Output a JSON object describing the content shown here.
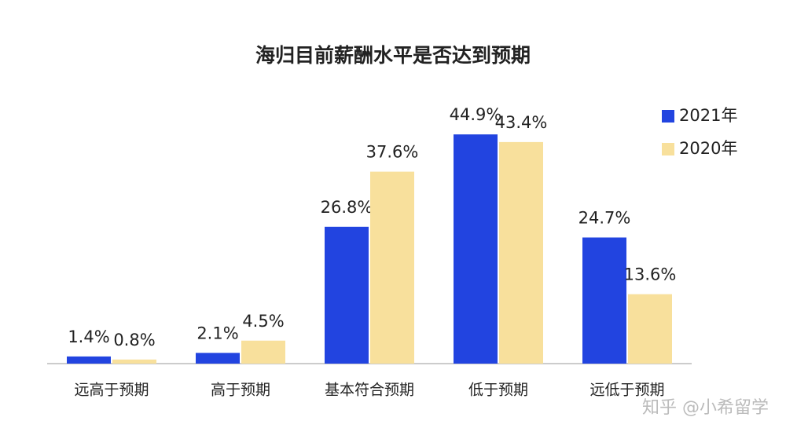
{
  "chart_data": {
    "type": "bar",
    "title": "海归目前薪酬水平是否达到预期",
    "categories": [
      "远高于预期",
      "高于预期",
      "基本符合预期",
      "低于预期",
      "远低于预期"
    ],
    "series": [
      {
        "name": "2021年",
        "color": "#2244e0",
        "values": [
          1.4,
          2.1,
          26.8,
          44.9,
          24.7
        ],
        "value_labels": [
          "1.4%",
          "2.1%",
          "26.8%",
          "44.9%",
          "24.7%"
        ]
      },
      {
        "name": "2020年",
        "color": "#f8e09c",
        "values": [
          0.8,
          4.5,
          37.6,
          43.4,
          13.6
        ],
        "value_labels": [
          "0.8%",
          "4.5%",
          "37.6%",
          "43.4%",
          "13.6%"
        ]
      }
    ],
    "legend": "top-right",
    "watermark": "知乎 @小希留学"
  }
}
